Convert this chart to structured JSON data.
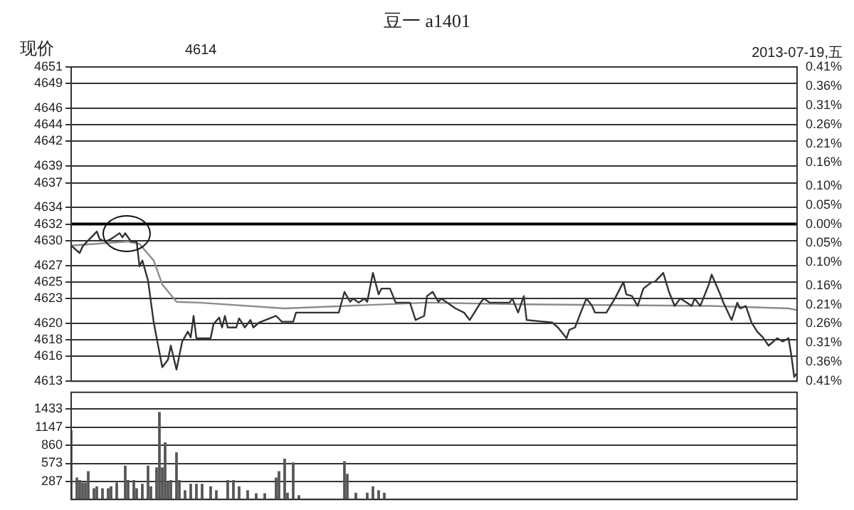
{
  "chart_data": [
    {
      "type": "line",
      "title": "豆一 a1401",
      "ylabel": "现价",
      "annotations": [
        "4614",
        "2013-07-19,五"
      ],
      "tick_labels": "y",
      "grid": "y",
      "categories": [
        null,
        null,
        null,
        null,
        null,
        null,
        null,
        null,
        null,
        null,
        null,
        null,
        null,
        null,
        null,
        null,
        null,
        null,
        null,
        null,
        null,
        null,
        null,
        null,
        null,
        null,
        null,
        null,
        null,
        null,
        null,
        null,
        null,
        null,
        null,
        null,
        null,
        null,
        null,
        null,
        null,
        null,
        null,
        null,
        null,
        null,
        null,
        null,
        null,
        null,
        null,
        null,
        null,
        null,
        null,
        null,
        null,
        null,
        null,
        null,
        null,
        null,
        null,
        null,
        null,
        null,
        null,
        null,
        null,
        null,
        null,
        null,
        null,
        null,
        null,
        null,
        null,
        null,
        null,
        null,
        null,
        null,
        null,
        null,
        null,
        null,
        null,
        null,
        null,
        null,
        null,
        null,
        null,
        null,
        null,
        null,
        null,
        null,
        null,
        null,
        null,
        null,
        null,
        null,
        null,
        null,
        null,
        null,
        null,
        null,
        null,
        null,
        null,
        null,
        null,
        null,
        null,
        null,
        null,
        null,
        null,
        null,
        null,
        null,
        null,
        null,
        null,
        null,
        null,
        null,
        null,
        null,
        null,
        null,
        null,
        null,
        null,
        null,
        null,
        null,
        null,
        null,
        null,
        null,
        null,
        null,
        null,
        null,
        null,
        null,
        null,
        null,
        null,
        null,
        null,
        null,
        null,
        null,
        null,
        null,
        null,
        null,
        null,
        null,
        null,
        null,
        null,
        null,
        null,
        null,
        null,
        null,
        null,
        null,
        null,
        null,
        null,
        null,
        null,
        null,
        null,
        null,
        null,
        null,
        null,
        null,
        null,
        null,
        null,
        null,
        null,
        null,
        null,
        null,
        null,
        null,
        null,
        null,
        null,
        null,
        null,
        null,
        null,
        null,
        null,
        null,
        null,
        null,
        null,
        null,
        null,
        null,
        null,
        null,
        null,
        null,
        null,
        null,
        null,
        null,
        null,
        null,
        null,
        null,
        null,
        null,
        null,
        null,
        null,
        null,
        null,
        null,
        null,
        null,
        null,
        null,
        null,
        null,
        null,
        null,
        null,
        null,
        null,
        null,
        null,
        null,
        null,
        null,
        null,
        null,
        null,
        null,
        null,
        null,
        null,
        null
      ],
      "ylim": [
        4613,
        4651
      ],
      "yticks": [
        4613,
        4616,
        4618,
        4620,
        4623,
        4625,
        4627,
        4630,
        4632,
        4634,
        4637,
        4639,
        4642,
        4644,
        4646,
        4649,
        4651
      ],
      "y2lim": [
        -0.41,
        0.41
      ],
      "y2ticks": [
        {
          "value": -0.41,
          "label": "0.41%"
        },
        {
          "value": -0.36,
          "label": "0.36%"
        },
        {
          "value": -0.31,
          "label": "0.31%"
        },
        {
          "value": -0.26,
          "label": "0.26%"
        },
        {
          "value": -0.21,
          "label": "0.21%"
        },
        {
          "value": -0.16,
          "label": "0.16%"
        },
        {
          "value": -0.1,
          "label": "0.10%"
        },
        {
          "value": -0.05,
          "label": "0.05%"
        },
        {
          "value": 0,
          "label": "0.00%"
        },
        {
          "value": 0.05,
          "label": "0.05%"
        },
        {
          "value": 0.1,
          "label": "0.10%"
        },
        {
          "value": 0.16,
          "label": "0.16%"
        },
        {
          "value": 0.21,
          "label": "0.21%"
        },
        {
          "value": 0.26,
          "label": "0.26%"
        },
        {
          "value": 0.31,
          "label": "0.31%"
        },
        {
          "value": 0.36,
          "label": "0.36%"
        },
        {
          "value": 0.41,
          "label": "0.41%"
        }
      ],
      "ref_lines": [
        {
          "axis": "y",
          "value": 4632,
          "color": "#000000"
        }
      ],
      "series": [
        {
          "color": "#333333",
          "values": [
            4629.4,
            null,
            null,
            4628.5,
            4629.3,
            null,
            null,
            null,
            null,
            4631.1,
            4630.2,
            null,
            4629.9,
            null,
            4630.2,
            null,
            null,
            4630.9,
            4630.4,
            4630.9,
            null,
            4629.9,
            null,
            4629.9,
            4626.9,
            4627.6,
            null,
            4625.2,
            null,
            4620.1,
            null,
            null,
            4614.7,
            null,
            4615.6,
            4617.3,
            null,
            4614.4,
            null,
            4617.8,
            null,
            4619,
            4618.3,
            4620.9,
            4618.2,
            null,
            null,
            null,
            null,
            4618.2,
            4619.9,
            null,
            4620.7,
            4619.5,
            4620.9,
            4619.5,
            null,
            null,
            4619.5,
            4620.6,
            null,
            4619.5,
            null,
            4620.4,
            4619.5,
            null,
            4620.1,
            null,
            null,
            null,
            null,
            null,
            4620.9,
            null,
            4620.2,
            null,
            null,
            null,
            4620.2,
            4621.3,
            null,
            null,
            null,
            null,
            null,
            null,
            null,
            null,
            null,
            null,
            null,
            null,
            null,
            null,
            4621.3,
            null,
            4623.8,
            null,
            4622.6,
            4623,
            null,
            4622.5,
            null,
            4623,
            4622.6,
            null,
            4626.1,
            null,
            4623.5,
            4624.2,
            null,
            null,
            4624.2,
            null,
            4622.5,
            null,
            null,
            null,
            null,
            4622.5,
            null,
            4620.4,
            null,
            null,
            4620.9,
            4623.3,
            null,
            4623.8,
            null,
            4622.6,
            4623,
            null,
            null,
            null,
            null,
            4621.8,
            null,
            null,
            4621.3,
            null,
            4620.4,
            null,
            null,
            null,
            4622.6,
            4623,
            null,
            4622.5,
            null,
            null,
            null,
            null,
            null,
            null,
            4622.5,
            4623,
            null,
            4621.3,
            null,
            4623.3,
            4620.4,
            null,
            null,
            null,
            null,
            null,
            null,
            null,
            null,
            4620.1,
            null,
            4619.5,
            null,
            null,
            4618.2,
            4619.2,
            null,
            4619.5,
            null,
            4621.3,
            null,
            4623,
            null,
            4622.1,
            4621.3,
            null,
            null,
            null,
            4621.3,
            null,
            null,
            4623,
            null,
            null,
            4625,
            4623.5,
            null,
            4623.3,
            null,
            4622.1,
            null,
            4624.2,
            null,
            null,
            4625,
            4625,
            null,
            null,
            4626.1,
            null,
            4623.8,
            null,
            4622.1,
            null,
            4623,
            null,
            null,
            null,
            4622.1,
            4623,
            null,
            4622.1,
            null,
            null,
            4624.7,
            4625.9,
            null,
            null,
            4623.5,
            4622.6,
            null,
            null,
            4620.4,
            null,
            4622.5,
            4621.8,
            null,
            4622.1,
            null,
            4620.1,
            null,
            4619,
            null,
            4618.3,
            null,
            4617.3,
            null,
            null,
            4618.2,
            null,
            4617.8,
            null,
            4618.2,
            4616.1,
            4613.5,
            4614
          ]
        },
        {
          "color": "#8c8c8c",
          "values": [
            4629.4,
            null,
            null,
            null,
            null,
            null,
            null,
            null,
            null,
            null,
            null,
            null,
            null,
            null,
            null,
            null,
            null,
            null,
            null,
            null,
            4629.9,
            null,
            null,
            null,
            4629.6,
            null,
            null,
            null,
            null,
            4627.6,
            null,
            null,
            4624.7,
            null,
            null,
            null,
            null,
            4622.6,
            null,
            null,
            null,
            null,
            null,
            null,
            null,
            4622.5,
            null,
            null,
            null,
            null,
            null,
            null,
            null,
            null,
            null,
            null,
            null,
            null,
            null,
            null,
            null,
            null,
            null,
            null,
            null,
            null,
            null,
            null,
            null,
            null,
            null,
            null,
            null,
            null,
            null,
            4621.8,
            null,
            null,
            null,
            null,
            null,
            null,
            null,
            null,
            null,
            null,
            null,
            null,
            null,
            null,
            null,
            null,
            null,
            null,
            null,
            null,
            null,
            null,
            null,
            null,
            null,
            null,
            null,
            null,
            null,
            null,
            null,
            null,
            null,
            null,
            null,
            null,
            null,
            null,
            null,
            null,
            null,
            null,
            null,
            null,
            null,
            null,
            null,
            null,
            null,
            4622.5,
            null,
            null,
            null,
            null,
            null,
            null,
            null,
            null,
            null,
            null,
            null,
            null,
            null,
            null,
            null,
            null,
            null,
            null,
            null,
            null,
            null,
            null,
            null,
            null,
            null,
            null,
            null,
            null,
            null,
            null,
            null,
            null,
            null,
            4622.3,
            null,
            null,
            null,
            null,
            null,
            null,
            null,
            null,
            null,
            null,
            null,
            null,
            null,
            null,
            null,
            null,
            null,
            null,
            null,
            null,
            null,
            null,
            null,
            null,
            null,
            null,
            null,
            null,
            null,
            null,
            null,
            null,
            null,
            null,
            null,
            null,
            null,
            null,
            null,
            null,
            null,
            null,
            null,
            null,
            null,
            null,
            null,
            null,
            null,
            null,
            null,
            null,
            null,
            null,
            null,
            null,
            null,
            null,
            null,
            null,
            null,
            null,
            null,
            null,
            null,
            4622.1,
            null,
            null,
            null,
            null,
            null,
            null,
            null,
            null,
            null,
            null,
            null,
            null,
            null,
            null,
            null,
            null,
            null,
            null,
            null,
            null,
            null,
            null,
            null,
            null,
            null,
            null,
            4621.8,
            null,
            null,
            4621.6
          ]
        }
      ]
    },
    {
      "type": "bar",
      "tick_labels": "y",
      "grid": "y",
      "categories": [
        null,
        null,
        null,
        null,
        null,
        null,
        null,
        null,
        null,
        null,
        null,
        null,
        null,
        null,
        null,
        null,
        null,
        null,
        null,
        null,
        null,
        null,
        null,
        null,
        null,
        null,
        null,
        null,
        null,
        null,
        null,
        null,
        null,
        null,
        null,
        null,
        null,
        null,
        null,
        null,
        null,
        null,
        null,
        null,
        null,
        null,
        null,
        null,
        null,
        null,
        null,
        null,
        null,
        null,
        null,
        null,
        null,
        null,
        null,
        null,
        null,
        null,
        null,
        null,
        null,
        null,
        null,
        null,
        null,
        null,
        null,
        null,
        null,
        null,
        null,
        null,
        null,
        null,
        null,
        null,
        null,
        null,
        null,
        null,
        null,
        null,
        null,
        null,
        null,
        null,
        null,
        null,
        null,
        null,
        null,
        null,
        null,
        null,
        null,
        null,
        null,
        null,
        null,
        null,
        null,
        null,
        null,
        null,
        null,
        null,
        null,
        null,
        null,
        null,
        null,
        null,
        null,
        null,
        null,
        null,
        null,
        null,
        null,
        null,
        null,
        null,
        null,
        null,
        null,
        null,
        null,
        null,
        null,
        null,
        null,
        null,
        null,
        null,
        null,
        null,
        null,
        null,
        null,
        null,
        null,
        null,
        null,
        null,
        null,
        null,
        null,
        null,
        null,
        null,
        null,
        null,
        null,
        null,
        null,
        null,
        null,
        null,
        null,
        null,
        null,
        null,
        null,
        null,
        null,
        null,
        null,
        null,
        null,
        null,
        null,
        null,
        null,
        null,
        null,
        null,
        null,
        null,
        null,
        null,
        null,
        null,
        null,
        null,
        null,
        null,
        null,
        null,
        null,
        null,
        null,
        null,
        null,
        null,
        null,
        null,
        null,
        null,
        null,
        null,
        null,
        null,
        null,
        null,
        null,
        null,
        null,
        null,
        null,
        null,
        null,
        null,
        null,
        null,
        null,
        null,
        null,
        null,
        null,
        null,
        null,
        null,
        null,
        null,
        null,
        null,
        null,
        null,
        null,
        null,
        null,
        null,
        null,
        null,
        null,
        null,
        null,
        null,
        null,
        null,
        null,
        null,
        null,
        null,
        null,
        null,
        null,
        null,
        null,
        null,
        null,
        null
      ],
      "ylim": [
        0,
        1700
      ],
      "yticks": [
        287,
        573,
        860,
        1147,
        1433
      ],
      "series": [
        {
          "color": "#555555",
          "values": [
            1090,
            null,
            340,
            300,
            260,
            260,
            440,
            null,
            170,
            200,
            null,
            170,
            null,
            170,
            200,
            null,
            260,
            null,
            null,
            530,
            300,
            null,
            300,
            170,
            null,
            240,
            null,
            530,
            200,
            null,
            500,
            1380,
            500,
            900,
            280,
            300,
            null,
            740,
            300,
            null,
            140,
            null,
            240,
            null,
            240,
            null,
            240,
            null,
            null,
            200,
            null,
            140,
            null,
            null,
            null,
            300,
            null,
            300,
            null,
            200,
            null,
            null,
            140,
            null,
            null,
            90,
            null,
            null,
            90,
            null,
            null,
            null,
            340,
            440,
            null,
            640,
            100,
            null,
            580,
            null,
            60,
            null,
            null,
            null,
            null,
            null,
            null,
            null,
            null,
            null,
            null,
            null,
            null,
            null,
            null,
            null,
            600,
            400,
            null,
            null,
            100,
            null,
            null,
            null,
            100,
            null,
            200,
            null,
            140,
            null,
            100,
            null,
            null,
            null,
            null,
            null,
            null,
            null,
            null,
            null,
            null,
            null,
            null,
            null,
            null,
            null,
            null,
            null,
            null,
            null,
            null,
            null,
            null,
            null,
            null,
            null,
            null,
            null,
            null,
            null,
            null,
            null,
            null,
            null,
            null,
            null,
            null,
            null,
            null,
            null,
            null,
            null,
            null,
            null,
            null,
            null,
            null,
            null,
            null,
            null,
            null,
            null,
            null,
            null,
            null,
            null,
            null,
            null,
            null,
            null,
            null,
            null,
            null,
            null,
            null,
            null,
            null,
            null,
            null,
            null,
            null,
            null,
            null,
            null,
            null,
            null,
            null,
            null,
            null,
            null,
            null,
            null,
            null,
            null,
            null,
            null,
            null,
            null,
            null,
            null,
            null,
            null,
            null,
            null,
            null,
            null,
            null,
            null,
            null,
            null,
            null,
            null,
            null,
            null,
            null,
            null,
            null,
            null,
            null,
            null,
            null,
            null,
            null,
            null,
            null,
            null,
            null,
            null,
            null,
            null,
            null,
            null,
            null,
            null,
            null,
            null,
            null,
            null,
            null,
            null,
            null,
            null,
            null,
            null,
            null,
            null,
            null,
            null,
            null,
            null,
            null,
            null,
            null,
            null,
            null,
            null
          ]
        }
      ]
    }
  ]
}
